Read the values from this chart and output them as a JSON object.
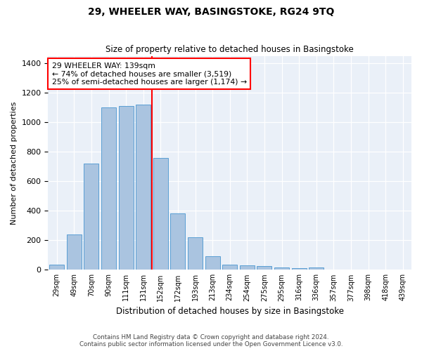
{
  "title": "29, WHEELER WAY, BASINGSTOKE, RG24 9TQ",
  "subtitle": "Size of property relative to detached houses in Basingstoke",
  "xlabel": "Distribution of detached houses by size in Basingstoke",
  "ylabel": "Number of detached properties",
  "bar_labels": [
    "29sqm",
    "49sqm",
    "70sqm",
    "90sqm",
    "111sqm",
    "131sqm",
    "152sqm",
    "172sqm",
    "193sqm",
    "213sqm",
    "234sqm",
    "254sqm",
    "275sqm",
    "295sqm",
    "316sqm",
    "336sqm",
    "357sqm",
    "377sqm",
    "398sqm",
    "418sqm",
    "439sqm"
  ],
  "bar_values": [
    35,
    240,
    720,
    1100,
    1110,
    1120,
    760,
    380,
    220,
    90,
    35,
    30,
    25,
    15,
    10,
    15,
    0,
    0,
    0,
    0,
    0
  ],
  "bar_color": "#aac4e0",
  "bar_edge_color": "#5a9fd4",
  "vline_x_index": 5.5,
  "vline_color": "red",
  "annotation_text": "29 WHEELER WAY: 139sqm\n← 74% of detached houses are smaller (3,519)\n25% of semi-detached houses are larger (1,174) →",
  "annotation_box_color": "white",
  "annotation_box_edge": "red",
  "ylim": [
    0,
    1450
  ],
  "yticks": [
    0,
    200,
    400,
    600,
    800,
    1000,
    1200,
    1400
  ],
  "background_color": "#eaf0f8",
  "footer_line1": "Contains HM Land Registry data © Crown copyright and database right 2024.",
  "footer_line2": "Contains public sector information licensed under the Open Government Licence v3.0."
}
